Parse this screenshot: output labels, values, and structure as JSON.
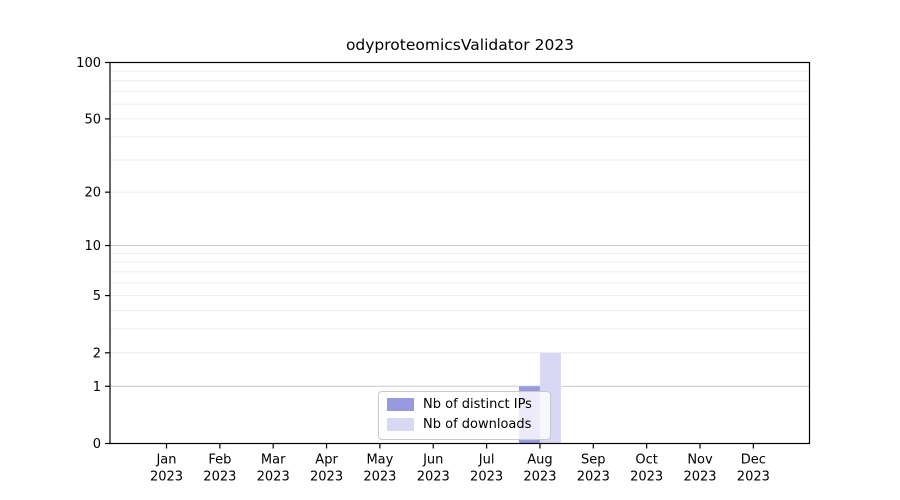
{
  "chart_data": {
    "type": "bar",
    "title": "odyproteomicsValidator 2023",
    "x": {
      "months": [
        "Jan",
        "Feb",
        "Mar",
        "Apr",
        "May",
        "Jun",
        "Jul",
        "Aug",
        "Sep",
        "Oct",
        "Nov",
        "Dec"
      ],
      "year": "2023"
    },
    "series": [
      {
        "name": "Nb of distinct IPs",
        "color": "#9999e0",
        "values": [
          0,
          0,
          0,
          0,
          0,
          0,
          0,
          1,
          0,
          0,
          0,
          0
        ]
      },
      {
        "name": "Nb of downloads",
        "color": "#d8d8f5",
        "values": [
          0,
          0,
          0,
          0,
          0,
          0,
          0,
          2,
          0,
          0,
          0,
          0
        ]
      }
    ],
    "y_axis": {
      "scale": "log1p",
      "range": [
        0,
        100
      ],
      "tick_labels": [
        0,
        1,
        2,
        5,
        10,
        20,
        50,
        100
      ],
      "major_gridlines": [
        1,
        10,
        100
      ],
      "minor_gridlines": [
        2,
        3,
        4,
        5,
        6,
        7,
        8,
        9,
        20,
        30,
        40,
        50,
        60,
        70,
        80,
        90
      ]
    },
    "legend": {
      "position": "lower-center",
      "entries": [
        "Nb of distinct IPs",
        "Nb of downloads"
      ]
    },
    "grid": true
  },
  "style": {
    "major_grid_color": "#c8c8c8",
    "minor_grid_color": "#ececec",
    "axis_color": "#000000",
    "text_color": "#000000",
    "legend_border_color": "#c9c9c9",
    "background_color": "#ffffff"
  }
}
